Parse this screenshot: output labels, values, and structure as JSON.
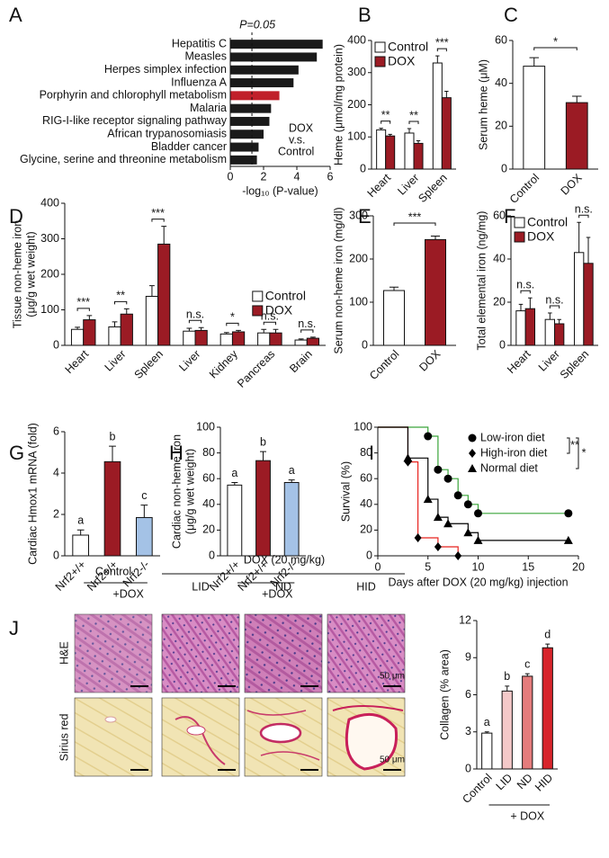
{
  "chart_data": [
    {
      "type": "hbar",
      "label": "A",
      "categories": [
        "Hepatitis C",
        "Measles",
        "Herpes simplex infection",
        "Influenza A",
        "Porphyrin and chlorophyll metabolism",
        "Malaria",
        "RIG-I-like receptor signaling pathway",
        "African trypanosomiasis",
        "Bladder cancer",
        "Glycine, serine and threonine metabolism"
      ],
      "values": [
        5.55,
        5.2,
        4.1,
        3.8,
        2.95,
        2.45,
        2.35,
        2.0,
        1.7,
        1.6
      ],
      "color": "#1a1a1a",
      "colors": [
        "#1a1a1a",
        "#1a1a1a",
        "#1a1a1a",
        "#1a1a1a",
        "#c0202a",
        "#1a1a1a",
        "#1a1a1a",
        "#1a1a1a",
        "#1a1a1a",
        "#1a1a1a"
      ],
      "xlim": [
        0,
        6
      ],
      "xticks": [
        0,
        2,
        4,
        6
      ],
      "xlabel": "-log₁₀ (P-value)",
      "reference_line": 1.3,
      "reference_label": "P=0.05",
      "annotation": [
        "DOX",
        "v.s.",
        "Control"
      ]
    },
    {
      "type": "bar",
      "label": "B",
      "ylabel": [
        "Heme (μmol/mg protein)"
      ],
      "categories": [
        "Heart",
        "Liver",
        "Spleen"
      ],
      "series": [
        {
          "name": "Control",
          "color": "#ffffff",
          "values": [
            122,
            112,
            330
          ],
          "errors": [
            5,
            14,
            22
          ]
        },
        {
          "name": "DOX",
          "color": "#9b1b24",
          "values": [
            103,
            80,
            222
          ],
          "errors": [
            5,
            8,
            20
          ]
        }
      ],
      "ylim": [
        0,
        400
      ],
      "yticks": [
        0,
        100,
        200,
        300,
        400
      ],
      "significance": [
        "**",
        "**",
        "***"
      ],
      "legend": "upper left"
    },
    {
      "type": "bar",
      "label": "C",
      "ylabel": [
        "Serum heme (μM)"
      ],
      "categories": [
        "Control",
        "DOX"
      ],
      "values": [
        48,
        31
      ],
      "errors": [
        4,
        3
      ],
      "colors": [
        "#ffffff",
        "#9b1b24"
      ],
      "ylim": [
        0,
        60
      ],
      "yticks": [
        0,
        20,
        40,
        60
      ],
      "significance": "*"
    },
    {
      "type": "bar",
      "label": "D",
      "ylabel": [
        "Tissue non-heme iron",
        "(μg/g wet weight)"
      ],
      "categories": [
        "Heart",
        "Liver",
        "Spleen",
        "Liver",
        "Kidney",
        "Pancreas",
        "Brain"
      ],
      "series": [
        {
          "name": "Control",
          "color": "#ffffff",
          "values": [
            45,
            52,
            138,
            40,
            32,
            35,
            15
          ],
          "errors": [
            6,
            14,
            30,
            8,
            4,
            10,
            3
          ]
        },
        {
          "name": "DOX",
          "color": "#9b1b24",
          "values": [
            72,
            88,
            285,
            42,
            38,
            35,
            20
          ],
          "errors": [
            12,
            15,
            50,
            8,
            4,
            10,
            3
          ]
        }
      ],
      "ylim": [
        0,
        400
      ],
      "yticks": [
        0,
        100,
        200,
        300,
        400
      ],
      "significance": [
        "***",
        "**",
        "***",
        "n.s.",
        "*",
        "n.s.",
        "n.s."
      ],
      "legend": "center right"
    },
    {
      "type": "bar",
      "label": "E",
      "ylabel": [
        "Serum non-heme iron (mg/dl)"
      ],
      "categories": [
        "Control",
        "DOX"
      ],
      "values": [
        127,
        245
      ],
      "errors": [
        8,
        8
      ],
      "colors": [
        "#ffffff",
        "#9b1b24"
      ],
      "ylim": [
        0,
        300
      ],
      "yticks": [
        0,
        100,
        200,
        300
      ],
      "significance": "***"
    },
    {
      "type": "bar",
      "label": "F",
      "ylabel": [
        "Total elemental iron (ng/mg)"
      ],
      "categories": [
        "Heart",
        "Liver",
        "Spleen"
      ],
      "series": [
        {
          "name": "Control",
          "color": "#ffffff",
          "values": [
            16,
            12,
            43
          ],
          "errors": [
            3,
            3,
            14
          ]
        },
        {
          "name": "DOX",
          "color": "#9b1b24",
          "values": [
            17,
            10,
            38
          ],
          "errors": [
            5,
            2,
            12
          ]
        }
      ],
      "ylim": [
        0,
        60
      ],
      "yticks": [
        0,
        20,
        40,
        60
      ],
      "significance": [
        "n.s.",
        "n.s.",
        "n.s."
      ],
      "legend": "upper left"
    },
    {
      "type": "bar",
      "label": "G",
      "ylabel": [
        "Cardiac Hmox1 mRNA (fold)"
      ],
      "categories": [
        "Nrf2+/+",
        "Nrf2+/+",
        "Nrf2-/-"
      ],
      "values": [
        1.0,
        4.55,
        1.85
      ],
      "errors": [
        0.25,
        0.75,
        0.6
      ],
      "colors": [
        "#ffffff",
        "#9b1b24",
        "#a4c2e6"
      ],
      "ylim": [
        0,
        6
      ],
      "yticks": [
        0,
        2,
        4,
        6
      ],
      "letters": [
        "a",
        "b",
        "c"
      ],
      "group_label": "+DOX"
    },
    {
      "type": "bar",
      "label": "H",
      "ylabel": [
        "Cardiac non-heme iron",
        "(μg/g wet weight)"
      ],
      "categories": [
        "Nrf2+/+",
        "Nrf2+/+",
        "Nrf2-/-"
      ],
      "values": [
        55,
        74,
        57
      ],
      "errors": [
        2,
        7,
        2
      ],
      "colors": [
        "#ffffff",
        "#9b1b24",
        "#a4c2e6"
      ],
      "ylim": [
        0,
        100
      ],
      "yticks": [
        0,
        20,
        40,
        60,
        80,
        100
      ],
      "letters": [
        "a",
        "b",
        "a"
      ],
      "group_label": "+DOX"
    },
    {
      "type": "line",
      "label": "I",
      "ylabel": [
        "Survival (%)"
      ],
      "xlabel": "Days after DOX (20 mg/kg) injection",
      "xlim": [
        0,
        20
      ],
      "xticks": [
        0,
        5,
        10,
        15,
        20
      ],
      "ylim": [
        0,
        100
      ],
      "yticks": [
        0,
        20,
        40,
        60,
        80,
        100
      ],
      "series": [
        {
          "name": "Low-iron diet",
          "color": "#3aa53a",
          "marker": "circle",
          "marker_color": "#000000",
          "x": [
            0,
            5,
            6,
            7,
            8,
            9,
            10,
            19
          ],
          "y": [
            100,
            93,
            67,
            60,
            47,
            40,
            33,
            33
          ]
        },
        {
          "name": "High-iron diet",
          "color": "#e8231f",
          "marker": "diamond",
          "marker_color": "#000000",
          "x": [
            0,
            3,
            4,
            6,
            8
          ],
          "y": [
            100,
            73,
            14,
            7,
            0
          ]
        },
        {
          "name": "Normal diet",
          "color": "#000000",
          "marker": "triangle",
          "marker_color": "#000000",
          "x": [
            0,
            3,
            5,
            6,
            7,
            9,
            10,
            19
          ],
          "y": [
            100,
            76,
            44,
            30,
            25,
            18,
            12,
            12
          ]
        }
      ],
      "significance": [
        "**",
        "*"
      ]
    },
    {
      "type": "bar",
      "ylabel": [
        "Collagen (% area)"
      ],
      "categories": [
        "Control",
        "LID",
        "ND",
        "HID"
      ],
      "values": [
        2.9,
        6.3,
        7.5,
        9.8
      ],
      "errors": [
        0.1,
        0.4,
        0.2,
        0.3
      ],
      "colors": [
        "#ffffff",
        "#f4c9c9",
        "#e57c7c",
        "#d7242b"
      ],
      "ylim": [
        0,
        12
      ],
      "yticks": [
        0,
        3,
        6,
        9,
        12
      ],
      "letters": [
        "a",
        "b",
        "c",
        "d"
      ],
      "group_label": "+ DOX"
    }
  ],
  "histology": {
    "label": "J",
    "title": "DOX (20 mg/kg)",
    "columns": [
      "Control",
      "LID",
      "ND",
      "HID"
    ],
    "rows": [
      "H&E",
      "Sirius red"
    ],
    "scale_bar": "50 μm"
  }
}
